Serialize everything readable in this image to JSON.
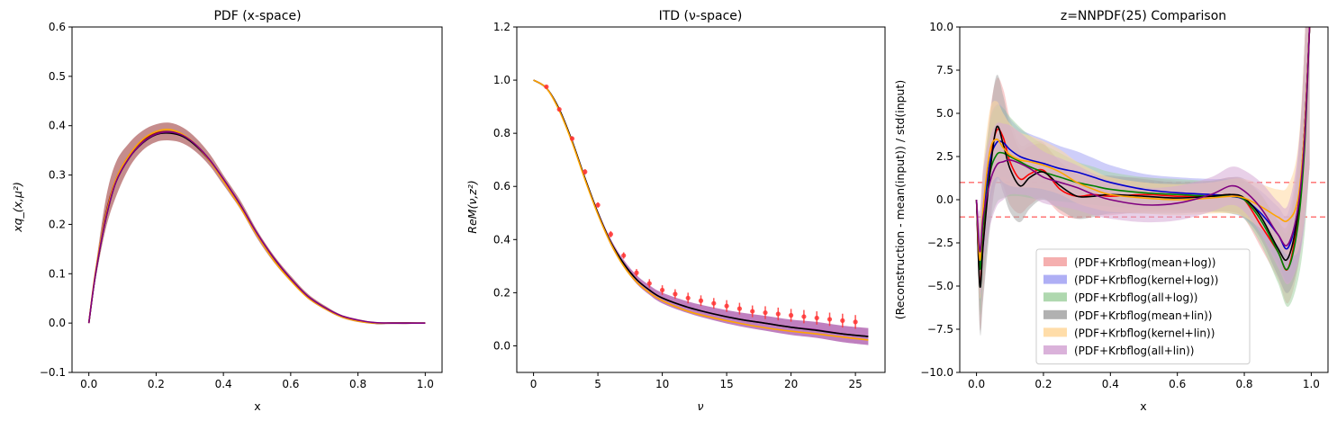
{
  "chart_data": [
    {
      "type": "line",
      "title": "PDF (x-space)",
      "xlabel": "x",
      "ylabel": "xq_(x,μ²)",
      "xlim": [
        -0.05,
        1.05
      ],
      "ylim": [
        -0.1,
        0.6
      ],
      "xticks": [
        "0.0",
        "0.2",
        "0.4",
        "0.6",
        "0.8",
        "1.0"
      ],
      "yticks": [
        "−0.1",
        "0.0",
        "0.1",
        "0.2",
        "0.3",
        "0.4",
        "0.5",
        "0.6"
      ],
      "grid": false,
      "x": [
        0.0,
        0.02,
        0.05,
        0.08,
        0.12,
        0.16,
        0.2,
        0.24,
        0.28,
        0.32,
        0.36,
        0.4,
        0.45,
        0.5,
        0.55,
        0.6,
        0.65,
        0.7,
        0.75,
        0.8,
        0.85,
        0.9,
        0.95,
        1.0
      ],
      "series": [
        {
          "color": "#8b1a1a",
          "values": [
            0.0,
            0.1,
            0.22,
            0.29,
            0.34,
            0.37,
            0.385,
            0.388,
            0.38,
            0.36,
            0.33,
            0.29,
            0.24,
            0.18,
            0.13,
            0.09,
            0.055,
            0.032,
            0.014,
            0.005,
            0.0,
            0.0,
            0.0,
            0.0
          ],
          "band": [
            0.0,
            0.012,
            0.03,
            0.035,
            0.025,
            0.02,
            0.018,
            0.018,
            0.016,
            0.014,
            0.012,
            0.01,
            0.009,
            0.008,
            0.007,
            0.006,
            0.005,
            0.004,
            0.003,
            0.003,
            0.002,
            0.002,
            0.002,
            0.0
          ]
        },
        {
          "color": "#000000",
          "values": [
            0.0,
            0.1,
            0.21,
            0.285,
            0.335,
            0.365,
            0.382,
            0.385,
            0.378,
            0.358,
            0.328,
            0.29,
            0.238,
            0.18,
            0.13,
            0.088,
            0.054,
            0.031,
            0.014,
            0.005,
            0.0,
            0.0,
            0.0,
            0.0
          ]
        },
        {
          "color": "#ffa500",
          "values": [
            0.0,
            0.105,
            0.215,
            0.29,
            0.34,
            0.372,
            0.388,
            0.392,
            0.382,
            0.36,
            0.328,
            0.288,
            0.235,
            0.178,
            0.127,
            0.086,
            0.052,
            0.03,
            0.013,
            0.004,
            0.0,
            0.0,
            0.0,
            0.0
          ]
        },
        {
          "color": "#800080",
          "values": [
            0.0,
            0.1,
            0.21,
            0.285,
            0.335,
            0.366,
            0.383,
            0.387,
            0.38,
            0.36,
            0.33,
            0.292,
            0.24,
            0.182,
            0.132,
            0.09,
            0.055,
            0.032,
            0.015,
            0.006,
            0.001,
            0.0,
            0.0,
            0.0
          ]
        }
      ]
    },
    {
      "type": "line",
      "title": "ITD (ν-space)",
      "xlabel": "ν",
      "ylabel": "ReM(ν,z²)",
      "xlim": [
        -1.3,
        27.3
      ],
      "ylim": [
        -0.1,
        1.2
      ],
      "xticks": [
        "0",
        "5",
        "10",
        "15",
        "20",
        "25"
      ],
      "yticks": [
        "0.0",
        "0.2",
        "0.4",
        "0.6",
        "0.8",
        "1.0",
        "1.2"
      ],
      "grid": false,
      "x": [
        0,
        1,
        2,
        3,
        4,
        5,
        6,
        7,
        8,
        9,
        10,
        12,
        14,
        16,
        18,
        20,
        22,
        24,
        26
      ],
      "series": [
        {
          "color": "#800080",
          "values": [
            1.0,
            0.97,
            0.89,
            0.77,
            0.63,
            0.5,
            0.39,
            0.31,
            0.25,
            0.21,
            0.18,
            0.145,
            0.12,
            0.1,
            0.085,
            0.07,
            0.06,
            0.045,
            0.035
          ],
          "band": [
            0.0,
            0.002,
            0.004,
            0.006,
            0.008,
            0.01,
            0.012,
            0.014,
            0.016,
            0.018,
            0.02,
            0.022,
            0.024,
            0.026,
            0.028,
            0.029,
            0.03,
            0.031,
            0.032
          ]
        },
        {
          "color": "#000000",
          "values": [
            1.0,
            0.97,
            0.89,
            0.77,
            0.63,
            0.5,
            0.39,
            0.31,
            0.25,
            0.21,
            0.18,
            0.145,
            0.12,
            0.1,
            0.085,
            0.07,
            0.058,
            0.045,
            0.035
          ]
        },
        {
          "color": "#ffa500",
          "values": [
            1.0,
            0.97,
            0.885,
            0.765,
            0.625,
            0.495,
            0.385,
            0.3,
            0.24,
            0.2,
            0.17,
            0.13,
            0.105,
            0.085,
            0.068,
            0.055,
            0.045,
            0.033,
            0.022
          ]
        }
      ],
      "points": {
        "color": "#ff3333",
        "x": [
          1,
          2,
          3,
          4,
          5,
          6,
          7,
          8,
          9,
          10,
          11,
          12,
          13,
          14,
          15,
          16,
          17,
          18,
          19,
          20,
          21,
          22,
          23,
          24,
          25
        ],
        "y": [
          0.975,
          0.89,
          0.78,
          0.655,
          0.53,
          0.42,
          0.34,
          0.275,
          0.235,
          0.21,
          0.195,
          0.18,
          0.17,
          0.16,
          0.15,
          0.14,
          0.13,
          0.125,
          0.12,
          0.115,
          0.11,
          0.105,
          0.1,
          0.095,
          0.09
        ],
        "err": [
          0.005,
          0.007,
          0.009,
          0.01,
          0.01,
          0.012,
          0.012,
          0.014,
          0.016,
          0.018,
          0.018,
          0.02,
          0.02,
          0.02,
          0.022,
          0.022,
          0.022,
          0.024,
          0.024,
          0.024,
          0.025,
          0.025,
          0.025,
          0.026,
          0.026
        ]
      }
    },
    {
      "type": "line",
      "title": "z=NNPDF(25) Comparison",
      "xlabel": "x",
      "ylabel": "(Reconstruction - mean(input)) / std(input)",
      "xlim": [
        -0.05,
        1.05
      ],
      "ylim": [
        -10,
        10
      ],
      "xticks": [
        "0.0",
        "0.2",
        "0.4",
        "0.6",
        "0.8",
        "1.0"
      ],
      "yticks": [
        "−10.0",
        "−7.5",
        "−5.0",
        "−2.5",
        "0.0",
        "2.5",
        "5.0",
        "7.5",
        "10.0"
      ],
      "grid": false,
      "legend_position": "lower-center",
      "reference_lines": [
        {
          "y": 1,
          "color": "#ff4444",
          "style": "dashed"
        },
        {
          "y": -1,
          "color": "#ff4444",
          "style": "dashed"
        }
      ],
      "x": [
        0.0,
        0.01,
        0.02,
        0.04,
        0.06,
        0.08,
        0.1,
        0.13,
        0.16,
        0.2,
        0.25,
        0.3,
        0.35,
        0.4,
        0.5,
        0.6,
        0.7,
        0.76,
        0.8,
        0.85,
        0.9,
        0.93,
        0.96,
        0.98,
        0.995
      ],
      "series": [
        {
          "name": "(PDF+Krbflog(mean+log))",
          "color": "#ff0000",
          "band_color": "#f4a6a6",
          "values": [
            0.0,
            -4.8,
            -2.5,
            2.0,
            4.0,
            3.6,
            2.2,
            1.2,
            1.5,
            1.7,
            0.6,
            0.2,
            0.3,
            0.2,
            0.3,
            0.2,
            0.2,
            0.3,
            0.0,
            -1.5,
            -3.0,
            -4.0,
            -1.0,
            4.0,
            10.0
          ],
          "band": [
            0.0,
            2.5,
            3.0,
            3.0,
            3.0,
            2.8,
            2.5,
            2.0,
            1.8,
            1.6,
            1.4,
            1.3,
            1.2,
            1.1,
            1.0,
            0.9,
            0.9,
            1.0,
            1.1,
            1.3,
            1.6,
            2.0,
            3.0,
            5.0,
            8.0
          ]
        },
        {
          "name": "(PDF+Krbflog(kernel+log))",
          "color": "#0000cc",
          "band_color": "#a6a6f4",
          "values": [
            0.0,
            -3.8,
            -1.0,
            2.2,
            3.3,
            3.3,
            2.9,
            2.5,
            2.3,
            2.1,
            1.8,
            1.6,
            1.3,
            1.0,
            0.6,
            0.4,
            0.3,
            0.2,
            0.0,
            -0.8,
            -2.0,
            -2.8,
            -0.5,
            4.0,
            10.0
          ],
          "band": [
            0.0,
            2.0,
            2.5,
            2.4,
            2.2,
            2.0,
            1.8,
            1.6,
            1.5,
            1.4,
            1.3,
            1.2,
            1.1,
            1.0,
            0.9,
            0.9,
            0.9,
            1.0,
            1.1,
            1.3,
            1.6,
            2.0,
            3.0,
            5.0,
            8.0
          ]
        },
        {
          "name": "(PDF+Krbflog(all+log))",
          "color": "#008000",
          "band_color": "#a6d4a6",
          "values": [
            0.0,
            -4.0,
            -1.5,
            1.5,
            2.6,
            2.7,
            2.5,
            2.2,
            1.9,
            1.6,
            1.3,
            1.0,
            0.8,
            0.6,
            0.4,
            0.3,
            0.2,
            0.2,
            0.0,
            -1.2,
            -3.0,
            -4.0,
            -1.5,
            3.0,
            10.0
          ],
          "band": [
            0.0,
            2.5,
            3.0,
            3.0,
            2.8,
            2.6,
            2.3,
            2.0,
            1.8,
            1.6,
            1.4,
            1.2,
            1.1,
            1.0,
            0.9,
            0.9,
            0.9,
            1.0,
            1.1,
            1.4,
            1.8,
            2.2,
            3.2,
            5.0,
            8.0
          ]
        },
        {
          "name": "(PDF+Krbflog(mean+lin))",
          "color": "#000000",
          "band_color": "#a9a9a9",
          "values": [
            0.0,
            -5.0,
            -2.6,
            1.5,
            4.2,
            3.2,
            1.8,
            0.8,
            1.3,
            1.6,
            0.8,
            0.2,
            0.2,
            0.3,
            0.2,
            0.1,
            0.2,
            0.3,
            0.1,
            -1.0,
            -2.8,
            -3.4,
            -0.8,
            4.0,
            10.0
          ],
          "band": [
            0.0,
            2.6,
            3.2,
            3.2,
            3.0,
            2.8,
            2.5,
            2.1,
            1.8,
            1.6,
            1.4,
            1.3,
            1.2,
            1.1,
            1.0,
            0.9,
            0.9,
            1.0,
            1.1,
            1.3,
            1.6,
            2.0,
            3.0,
            5.0,
            8.0
          ]
        },
        {
          "name": "(PDF+Krbflog(kernel+lin))",
          "color": "#ffa500",
          "band_color": "#ffd9a0",
          "values": [
            0.0,
            -3.5,
            -0.5,
            2.8,
            3.5,
            3.0,
            2.6,
            2.3,
            2.2,
            2.0,
            1.6,
            1.0,
            0.6,
            0.3,
            0.1,
            0.0,
            0.1,
            0.2,
            0.1,
            -0.4,
            -1.0,
            -1.2,
            0.0,
            4.0,
            10.0
          ],
          "band": [
            0.0,
            2.2,
            2.5,
            2.4,
            2.2,
            2.0,
            1.8,
            1.6,
            1.5,
            1.4,
            1.3,
            1.2,
            1.1,
            1.0,
            0.9,
            0.9,
            0.9,
            1.0,
            1.1,
            1.3,
            1.6,
            2.0,
            3.0,
            5.0,
            8.0
          ]
        },
        {
          "name": "(PDF+Krbflog(all+lin))",
          "color": "#800080",
          "band_color": "#d6aad6",
          "values": [
            0.0,
            -3.0,
            -1.0,
            1.0,
            2.0,
            2.2,
            2.3,
            2.1,
            1.8,
            1.3,
            1.0,
            0.7,
            0.3,
            0.0,
            -0.3,
            -0.2,
            0.3,
            0.8,
            0.5,
            -0.5,
            -2.0,
            -2.6,
            -0.5,
            3.5,
            10.0
          ],
          "band": [
            0.0,
            2.4,
            2.8,
            2.6,
            2.4,
            2.2,
            2.0,
            1.8,
            1.6,
            1.5,
            1.4,
            1.3,
            1.2,
            1.1,
            1.0,
            1.0,
            1.0,
            1.1,
            1.2,
            1.5,
            1.9,
            2.3,
            3.2,
            5.0,
            8.0
          ]
        }
      ]
    }
  ]
}
